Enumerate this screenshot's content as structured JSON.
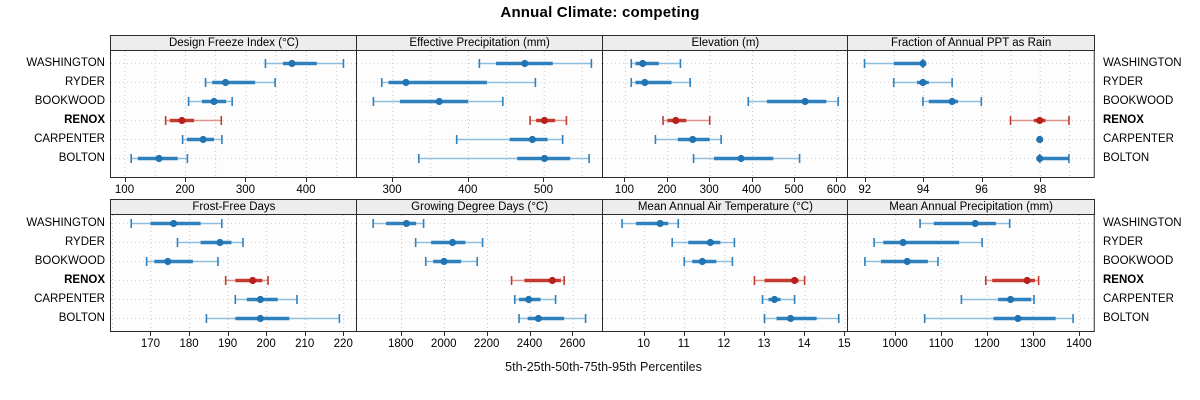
{
  "title": "Annual Climate: competing",
  "caption": "5th-25th-50th-75th-95th Percentiles",
  "locations": [
    "WASHINGTON",
    "RYDER",
    "BOOKWOOD",
    "RENOX",
    "CARPENTER",
    "BOLTON"
  ],
  "highlight_location": "RENOX",
  "colors": {
    "normal_dot": "#2173b2",
    "normal_band": "#2f80bc",
    "normal_range": "#8fbedd",
    "highlight_dot": "#b6211c",
    "highlight_band": "#c23a2e",
    "highlight_range": "#dd958d",
    "strip_bg": "#ededed",
    "panel_bg": "#fdfdfd",
    "border": "#2a2a2a",
    "grid": "#c6c6c6",
    "row_grid": "#d2d2d2"
  },
  "chart_data": {
    "type": "dotplot",
    "note": "trellis percentile dot plot; each series value array is [p5,p25,p50,p75,p95]",
    "percentiles": [
      5,
      25,
      50,
      75,
      95
    ],
    "panels": [
      {
        "row": 0,
        "col": 0,
        "title": "Design Freeze Index (°C)",
        "slug": "design-freeze-index",
        "xlim": [
          76,
          484
        ],
        "ticks": [
          100,
          200,
          300,
          400
        ],
        "gridlines": [
          100,
          150,
          200,
          250,
          300,
          350,
          400,
          450
        ],
        "series": {
          "WASHINGTON": [
            333,
            362,
            377,
            418,
            462
          ],
          "RYDER": [
            234,
            245,
            267,
            316,
            349
          ],
          "BOOKWOOD": [
            206,
            228,
            248,
            268,
            278
          ],
          "RENOX": [
            168,
            175,
            195,
            215,
            260
          ],
          "CARPENTER": [
            196,
            203,
            230,
            248,
            261
          ],
          "BOLTON": [
            111,
            122,
            157,
            188,
            204
          ]
        }
      },
      {
        "row": 0,
        "col": 1,
        "title": "Effective Precipitation (mm)",
        "slug": "effective-precipitation",
        "xlim": [
          252,
          578
        ],
        "ticks": [
          300,
          400,
          500
        ],
        "gridlines": [
          300,
          350,
          400,
          450,
          500,
          550
        ],
        "series": {
          "WASHINGTON": [
            415,
            437,
            475,
            512,
            563
          ],
          "RYDER": [
            286,
            295,
            318,
            425,
            489
          ],
          "BOOKWOOD": [
            275,
            310,
            362,
            400,
            446
          ],
          "RENOX": [
            482,
            490,
            501,
            515,
            530
          ],
          "CARPENTER": [
            385,
            455,
            485,
            505,
            525
          ],
          "BOLTON": [
            335,
            465,
            501,
            535,
            560
          ]
        }
      },
      {
        "row": 0,
        "col": 2,
        "title": "Elevation (m)",
        "slug": "elevation",
        "xlim": [
          46,
          628
        ],
        "ticks": [
          100,
          200,
          300,
          400,
          500,
          600
        ],
        "gridlines": [
          100,
          200,
          300,
          400,
          500,
          600
        ],
        "series": {
          "WASHINGTON": [
            115,
            125,
            142,
            180,
            231
          ],
          "RYDER": [
            115,
            125,
            147,
            210,
            254
          ],
          "BOOKWOOD": [
            391,
            435,
            525,
            575,
            603
          ],
          "RENOX": [
            190,
            200,
            220,
            245,
            300
          ],
          "CARPENTER": [
            172,
            225,
            260,
            300,
            327
          ],
          "BOLTON": [
            262,
            310,
            374,
            450,
            512
          ]
        }
      },
      {
        "row": 0,
        "col": 3,
        "title": "Fraction of Annual PPT as Rain",
        "slug": "fraction-of-annual-ppt-as-rain",
        "xlim": [
          91.4,
          99.85
        ],
        "ticks": [
          92,
          94,
          96,
          98
        ],
        "gridlines": [
          92,
          93,
          94,
          95,
          96,
          97,
          98,
          99
        ],
        "series": {
          "WASHINGTON": [
            92,
            93,
            94,
            94,
            94
          ],
          "RYDER": [
            93,
            93.8,
            94,
            94.2,
            95
          ],
          "BOOKWOOD": [
            94,
            94.2,
            95,
            95.2,
            96
          ],
          "RENOX": [
            97,
            97.8,
            98,
            98.2,
            99
          ],
          "CARPENTER": [
            98,
            98,
            98,
            98,
            98
          ],
          "BOLTON": [
            98,
            98,
            98,
            99,
            99
          ]
        }
      },
      {
        "row": 1,
        "col": 0,
        "title": "Frost-Free Days",
        "slug": "frost-free-days",
        "xlim": [
          159.5,
          223.5
        ],
        "ticks": [
          170,
          180,
          190,
          200,
          210,
          220
        ],
        "gridlines": [
          160,
          170,
          180,
          190,
          200,
          210,
          220
        ],
        "series": {
          "WASHINGTON": [
            165,
            170,
            176,
            183,
            188.5
          ],
          "RYDER": [
            177,
            183,
            188,
            191,
            194
          ],
          "BOOKWOOD": [
            169,
            171,
            174.5,
            181,
            187.5
          ],
          "RENOX": [
            189.5,
            192,
            196.5,
            199,
            200.5
          ],
          "CARPENTER": [
            192,
            195,
            198.5,
            203,
            208
          ],
          "BOLTON": [
            184.5,
            192,
            198.5,
            206,
            219
          ]
        }
      },
      {
        "row": 1,
        "col": 1,
        "title": "Growing Degree Days (°C)",
        "slug": "growing-degree-days",
        "xlim": [
          1590,
          2740
        ],
        "ticks": [
          1800,
          2000,
          2200,
          2400,
          2600
        ],
        "gridlines": [
          1800,
          2000,
          2200,
          2400,
          2600
        ],
        "series": {
          "WASHINGTON": [
            1670,
            1730,
            1825,
            1870,
            1905
          ],
          "RYDER": [
            1868,
            1940,
            2040,
            2100,
            2180
          ],
          "BOOKWOOD": [
            1915,
            1950,
            2000,
            2080,
            2155
          ],
          "RENOX": [
            2315,
            2375,
            2505,
            2545,
            2560
          ],
          "CARPENTER": [
            2330,
            2350,
            2395,
            2450,
            2520
          ],
          "BOLTON": [
            2350,
            2390,
            2440,
            2560,
            2660
          ]
        }
      },
      {
        "row": 1,
        "col": 2,
        "title": "Mean Annual Air Temperature (°C)",
        "slug": "mean-annual-air-temperature",
        "xlim": [
          8.95,
          15.1
        ],
        "ticks": [
          10,
          11,
          12,
          13,
          14,
          15
        ],
        "gridlines": [
          10,
          11,
          12,
          13,
          14,
          15
        ],
        "series": {
          "WASHINGTON": [
            9.45,
            9.8,
            10.4,
            10.6,
            10.85
          ],
          "RYDER": [
            10.7,
            11.1,
            11.65,
            11.9,
            12.25
          ],
          "BOOKWOOD": [
            11.0,
            11.2,
            11.45,
            11.8,
            12.2
          ],
          "RENOX": [
            12.75,
            13.0,
            13.75,
            13.85,
            14.0
          ],
          "CARPENTER": [
            12.95,
            13.1,
            13.25,
            13.4,
            13.75
          ],
          "BOLTON": [
            13.0,
            13.3,
            13.65,
            14.3,
            14.85
          ]
        }
      },
      {
        "row": 1,
        "col": 3,
        "title": "Mean Annual Precipitation (mm)",
        "slug": "mean-annual-precipitation",
        "xlim": [
          896,
          1433
        ],
        "ticks": [
          1000,
          1100,
          1200,
          1300,
          1400
        ],
        "gridlines": [
          1000,
          1100,
          1200,
          1300,
          1400
        ],
        "series": {
          "WASHINGTON": [
            1055,
            1085,
            1175,
            1220,
            1250
          ],
          "RYDER": [
            955,
            975,
            1018,
            1140,
            1190
          ],
          "BOOKWOOD": [
            935,
            970,
            1027,
            1072,
            1094
          ],
          "RENOX": [
            1198,
            1212,
            1288,
            1305,
            1313
          ],
          "CARPENTER": [
            1145,
            1225,
            1252,
            1297,
            1303
          ],
          "BOLTON": [
            1065,
            1215,
            1268,
            1350,
            1388
          ]
        }
      }
    ]
  }
}
